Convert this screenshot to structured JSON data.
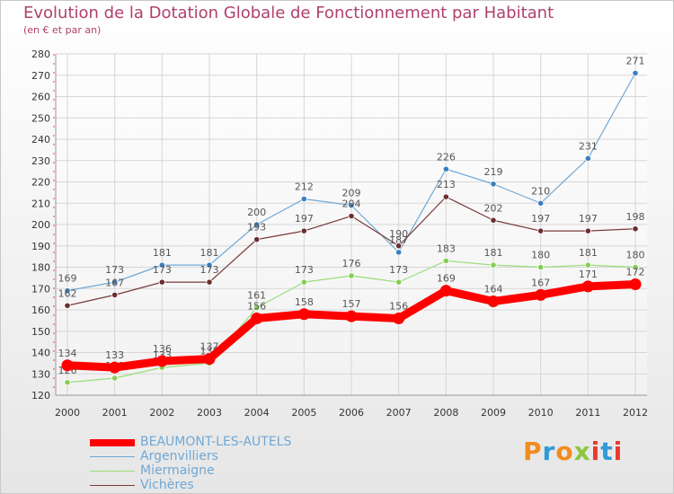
{
  "header": {
    "title": "Evolution de la Dotation Globale de Fonctionnement par Habitant",
    "subtitle": "(en € et par an)"
  },
  "brand": {
    "text": "Proxiti",
    "colors": [
      "#f28c1c",
      "#2f9ad8",
      "#f28c1c",
      "#8cc63f",
      "#e63a2e",
      "#2f9ad8",
      "#e63a2e"
    ]
  },
  "chart_data": {
    "type": "line",
    "categories": [
      "2000",
      "2001",
      "2002",
      "2003",
      "2004",
      "2005",
      "2006",
      "2007",
      "2008",
      "2009",
      "2010",
      "2011",
      "2012"
    ],
    "ylim": [
      120,
      280
    ],
    "yticks": [
      120,
      130,
      140,
      150,
      160,
      170,
      180,
      190,
      200,
      210,
      220,
      230,
      240,
      250,
      260,
      270,
      280
    ],
    "grid": true,
    "legend_position": "bottom-left",
    "series": [
      {
        "name": "BEAUMONT-LES-AUTELS",
        "color": "#ff0000",
        "labelColor": "#555555",
        "emphasis": true,
        "values": [
          134,
          133,
          136,
          137,
          156,
          158,
          157,
          156,
          169,
          164,
          167,
          171,
          172
        ]
      },
      {
        "name": "Argenvilliers",
        "color": "#6fa8d6",
        "marker": "#3a7fbf",
        "values": [
          169,
          173,
          181,
          181,
          200,
          212,
          209,
          187,
          226,
          219,
          210,
          231,
          271
        ]
      },
      {
        "name": "Miermaigne",
        "color": "#99dd77",
        "marker": "#88cc55",
        "values": [
          126,
          128,
          133,
          135,
          161,
          173,
          176,
          173,
          183,
          181,
          180,
          181,
          180
        ]
      },
      {
        "name": "Vichères",
        "color": "#7a3a3a",
        "marker": "#6b2f2f",
        "values": [
          162,
          167,
          173,
          173,
          193,
          197,
          204,
          190,
          213,
          202,
          197,
          197,
          198
        ]
      }
    ]
  }
}
